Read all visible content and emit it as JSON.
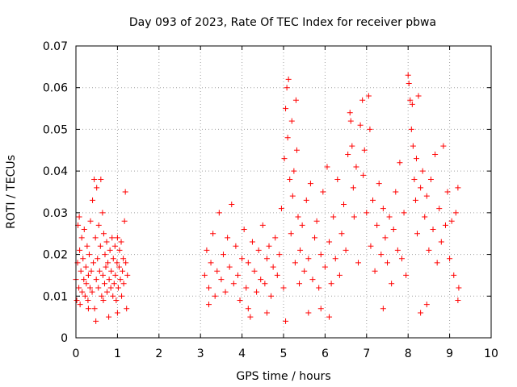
{
  "chart_data": {
    "type": "scatter",
    "title": "Day 093 of 2023, Rate Of TEC Index for receiver pbwa",
    "xlabel": "GPS time / hours",
    "ylabel": "ROTI / TECUs",
    "xlim": [
      0,
      10
    ],
    "ylim": [
      0,
      0.07
    ],
    "xticks": [
      0,
      1,
      2,
      3,
      4,
      5,
      6,
      7,
      8,
      9,
      10
    ],
    "xtick_labels": [
      "0",
      "1",
      "2",
      "3",
      "4",
      "5",
      "6",
      "7",
      "8",
      "9",
      "10"
    ],
    "yticks": [
      0,
      0.01,
      0.02,
      0.03,
      0.04,
      0.05,
      0.06,
      0.07
    ],
    "ytick_labels": [
      "0",
      "0.01",
      "0.02",
      "0.03",
      "0.04",
      "0.05",
      "0.06",
      "0.07"
    ],
    "grid": true,
    "marker": "+",
    "series": [
      {
        "name": "ROTI",
        "color": "#ff0000",
        "points": [
          [
            0.0,
            0.014
          ],
          [
            0.02,
            0.009
          ],
          [
            0.04,
            0.018
          ],
          [
            0.05,
            0.027
          ],
          [
            0.07,
            0.012
          ],
          [
            0.09,
            0.021
          ],
          [
            0.1,
            0.008
          ],
          [
            0.12,
            0.016
          ],
          [
            0.14,
            0.024
          ],
          [
            0.15,
            0.011
          ],
          [
            0.17,
            0.019
          ],
          [
            0.19,
            0.014
          ],
          [
            0.2,
            0.026
          ],
          [
            0.22,
            0.01
          ],
          [
            0.24,
            0.017
          ],
          [
            0.25,
            0.013
          ],
          [
            0.27,
            0.022
          ],
          [
            0.29,
            0.009
          ],
          [
            0.3,
            0.015
          ],
          [
            0.32,
            0.02
          ],
          [
            0.34,
            0.012
          ],
          [
            0.35,
            0.028
          ],
          [
            0.37,
            0.016
          ],
          [
            0.39,
            0.011
          ],
          [
            0.4,
            0.033
          ],
          [
            0.42,
            0.018
          ],
          [
            0.44,
            0.038
          ],
          [
            0.45,
            0.007
          ],
          [
            0.47,
            0.024
          ],
          [
            0.49,
            0.014
          ],
          [
            0.5,
            0.036
          ],
          [
            0.52,
            0.019
          ],
          [
            0.54,
            0.012
          ],
          [
            0.55,
            0.027
          ],
          [
            0.57,
            0.016
          ],
          [
            0.59,
            0.022
          ],
          [
            0.6,
            0.038
          ],
          [
            0.62,
            0.01
          ],
          [
            0.64,
            0.03
          ],
          [
            0.65,
            0.015
          ],
          [
            0.67,
            0.025
          ],
          [
            0.69,
            0.013
          ],
          [
            0.7,
            0.02
          ],
          [
            0.72,
            0.017
          ],
          [
            0.74,
            0.023
          ],
          [
            0.75,
            0.011
          ],
          [
            0.77,
            0.018
          ],
          [
            0.79,
            0.005
          ],
          [
            0.8,
            0.014
          ],
          [
            0.82,
            0.021
          ],
          [
            0.84,
            0.012
          ],
          [
            0.85,
            0.016
          ],
          [
            0.87,
            0.024
          ],
          [
            0.89,
            0.01
          ],
          [
            0.9,
            0.019
          ],
          [
            0.92,
            0.013
          ],
          [
            0.94,
            0.022
          ],
          [
            0.95,
            0.015
          ],
          [
            0.97,
            0.009
          ],
          [
            0.99,
            0.018
          ],
          [
            1.0,
            0.024
          ],
          [
            1.02,
            0.012
          ],
          [
            1.04,
            0.017
          ],
          [
            1.05,
            0.021
          ],
          [
            1.07,
            0.014
          ],
          [
            1.09,
            0.023
          ],
          [
            1.1,
            0.01
          ],
          [
            1.12,
            0.016
          ],
          [
            1.14,
            0.019
          ],
          [
            1.15,
            0.013
          ],
          [
            1.17,
            0.028
          ],
          [
            1.19,
            0.035
          ],
          [
            1.2,
            0.018
          ],
          [
            1.22,
            0.007
          ],
          [
            1.24,
            0.015
          ],
          [
            0.08,
            0.029
          ],
          [
            0.3,
            0.007
          ],
          [
            0.48,
            0.004
          ],
          [
            0.66,
            0.009
          ],
          [
            1.0,
            0.006
          ],
          [
            3.1,
            0.015
          ],
          [
            3.15,
            0.021
          ],
          [
            3.2,
            0.012
          ],
          [
            3.25,
            0.018
          ],
          [
            3.3,
            0.025
          ],
          [
            3.35,
            0.01
          ],
          [
            3.4,
            0.016
          ],
          [
            3.45,
            0.03
          ],
          [
            3.5,
            0.014
          ],
          [
            3.55,
            0.02
          ],
          [
            3.6,
            0.011
          ],
          [
            3.65,
            0.024
          ],
          [
            3.7,
            0.017
          ],
          [
            3.75,
            0.032
          ],
          [
            3.8,
            0.013
          ],
          [
            3.85,
            0.022
          ],
          [
            3.9,
            0.015
          ],
          [
            3.95,
            0.009
          ],
          [
            4.0,
            0.019
          ],
          [
            4.05,
            0.026
          ],
          [
            4.1,
            0.012
          ],
          [
            4.15,
            0.018
          ],
          [
            4.2,
            0.005
          ],
          [
            4.25,
            0.023
          ],
          [
            4.3,
            0.016
          ],
          [
            4.35,
            0.011
          ],
          [
            4.4,
            0.021
          ],
          [
            4.45,
            0.014
          ],
          [
            4.5,
            0.027
          ],
          [
            4.55,
            0.013
          ],
          [
            4.6,
            0.019
          ],
          [
            4.65,
            0.022
          ],
          [
            4.7,
            0.01
          ],
          [
            4.75,
            0.017
          ],
          [
            4.8,
            0.024
          ],
          [
            4.85,
            0.015
          ],
          [
            4.9,
            0.02
          ],
          [
            4.95,
            0.031
          ],
          [
            5.0,
            0.012
          ],
          [
            5.02,
            0.043
          ],
          [
            5.05,
            0.055
          ],
          [
            5.08,
            0.06
          ],
          [
            5.1,
            0.048
          ],
          [
            5.12,
            0.062
          ],
          [
            5.15,
            0.038
          ],
          [
            5.18,
            0.025
          ],
          [
            5.2,
            0.052
          ],
          [
            5.22,
            0.034
          ],
          [
            5.25,
            0.04
          ],
          [
            5.28,
            0.018
          ],
          [
            5.3,
            0.057
          ],
          [
            5.32,
            0.045
          ],
          [
            5.35,
            0.029
          ],
          [
            5.38,
            0.013
          ],
          [
            5.4,
            0.021
          ],
          [
            5.45,
            0.027
          ],
          [
            5.5,
            0.016
          ],
          [
            5.55,
            0.033
          ],
          [
            5.6,
            0.019
          ],
          [
            5.65,
            0.037
          ],
          [
            5.7,
            0.014
          ],
          [
            5.75,
            0.024
          ],
          [
            5.8,
            0.028
          ],
          [
            5.85,
            0.012
          ],
          [
            5.9,
            0.02
          ],
          [
            5.95,
            0.035
          ],
          [
            6.0,
            0.017
          ],
          [
            6.05,
            0.041
          ],
          [
            6.1,
            0.023
          ],
          [
            6.15,
            0.013
          ],
          [
            6.2,
            0.029
          ],
          [
            6.25,
            0.019
          ],
          [
            6.3,
            0.038
          ],
          [
            6.35,
            0.015
          ],
          [
            6.4,
            0.025
          ],
          [
            6.45,
            0.032
          ],
          [
            6.5,
            0.021
          ],
          [
            6.55,
            0.044
          ],
          [
            6.6,
            0.054
          ],
          [
            6.62,
            0.052
          ],
          [
            6.65,
            0.046
          ],
          [
            6.68,
            0.036
          ],
          [
            6.7,
            0.029
          ],
          [
            6.75,
            0.041
          ],
          [
            6.8,
            0.018
          ],
          [
            6.85,
            0.051
          ],
          [
            6.9,
            0.057
          ],
          [
            6.92,
            0.039
          ],
          [
            6.95,
            0.045
          ],
          [
            7.0,
            0.03
          ],
          [
            7.05,
            0.058
          ],
          [
            7.08,
            0.05
          ],
          [
            7.1,
            0.022
          ],
          [
            7.15,
            0.033
          ],
          [
            7.2,
            0.016
          ],
          [
            7.25,
            0.027
          ],
          [
            7.3,
            0.037
          ],
          [
            7.35,
            0.02
          ],
          [
            7.4,
            0.031
          ],
          [
            7.45,
            0.024
          ],
          [
            7.5,
            0.018
          ],
          [
            7.55,
            0.029
          ],
          [
            7.6,
            0.013
          ],
          [
            7.65,
            0.026
          ],
          [
            7.7,
            0.035
          ],
          [
            7.75,
            0.021
          ],
          [
            7.8,
            0.042
          ],
          [
            7.85,
            0.019
          ],
          [
            7.9,
            0.03
          ],
          [
            7.95,
            0.015
          ],
          [
            8.0,
            0.063
          ],
          [
            8.02,
            0.061
          ],
          [
            8.05,
            0.057
          ],
          [
            8.08,
            0.05
          ],
          [
            8.1,
            0.056
          ],
          [
            8.12,
            0.046
          ],
          [
            8.15,
            0.038
          ],
          [
            8.18,
            0.033
          ],
          [
            8.2,
            0.043
          ],
          [
            8.22,
            0.025
          ],
          [
            8.25,
            0.058
          ],
          [
            8.3,
            0.036
          ],
          [
            8.35,
            0.04
          ],
          [
            8.4,
            0.029
          ],
          [
            8.45,
            0.034
          ],
          [
            8.5,
            0.021
          ],
          [
            8.55,
            0.038
          ],
          [
            8.6,
            0.026
          ],
          [
            8.65,
            0.044
          ],
          [
            8.7,
            0.018
          ],
          [
            8.75,
            0.031
          ],
          [
            8.8,
            0.023
          ],
          [
            8.85,
            0.046
          ],
          [
            8.9,
            0.027
          ],
          [
            8.95,
            0.035
          ],
          [
            9.0,
            0.019
          ],
          [
            9.05,
            0.028
          ],
          [
            9.1,
            0.015
          ],
          [
            9.15,
            0.03
          ],
          [
            9.2,
            0.036
          ],
          [
            9.22,
            0.012
          ],
          [
            5.05,
            0.004
          ],
          [
            5.6,
            0.006
          ],
          [
            6.1,
            0.005
          ],
          [
            7.4,
            0.007
          ],
          [
            8.3,
            0.006
          ],
          [
            8.45,
            0.008
          ],
          [
            9.2,
            0.009
          ],
          [
            3.2,
            0.008
          ],
          [
            4.15,
            0.007
          ],
          [
            4.6,
            0.006
          ],
          [
            5.9,
            0.007
          ]
        ]
      }
    ]
  }
}
